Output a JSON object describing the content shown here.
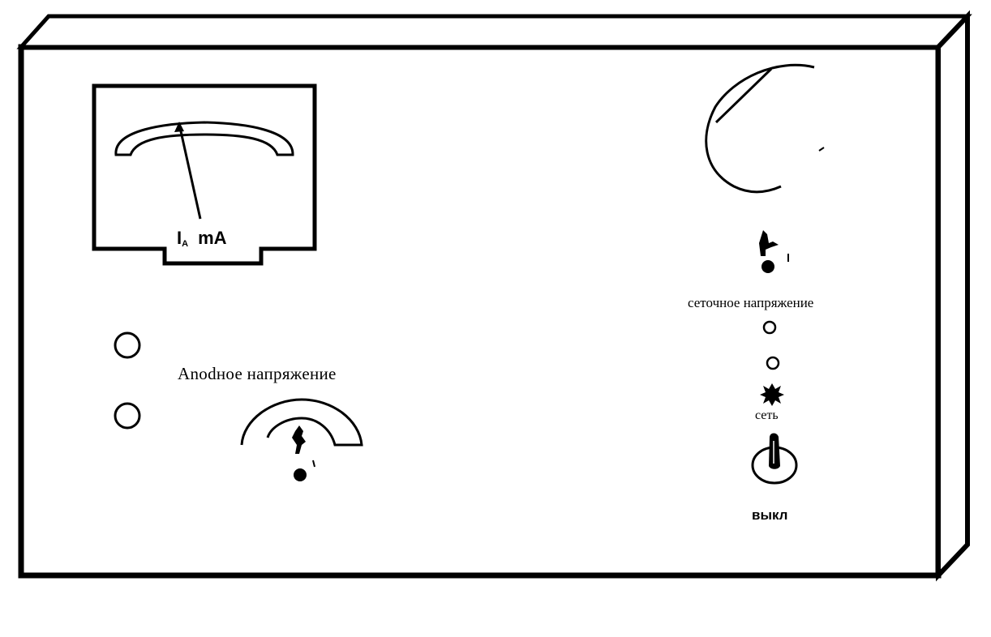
{
  "meter": {
    "symbol": "I",
    "subscript": "A",
    "unit": "mA"
  },
  "anode": {
    "label": "Anodное напряжение"
  },
  "grid": {
    "label": "сеточное напряжение"
  },
  "mains": {
    "label": "сеть"
  },
  "switch": {
    "label": "выкл"
  }
}
